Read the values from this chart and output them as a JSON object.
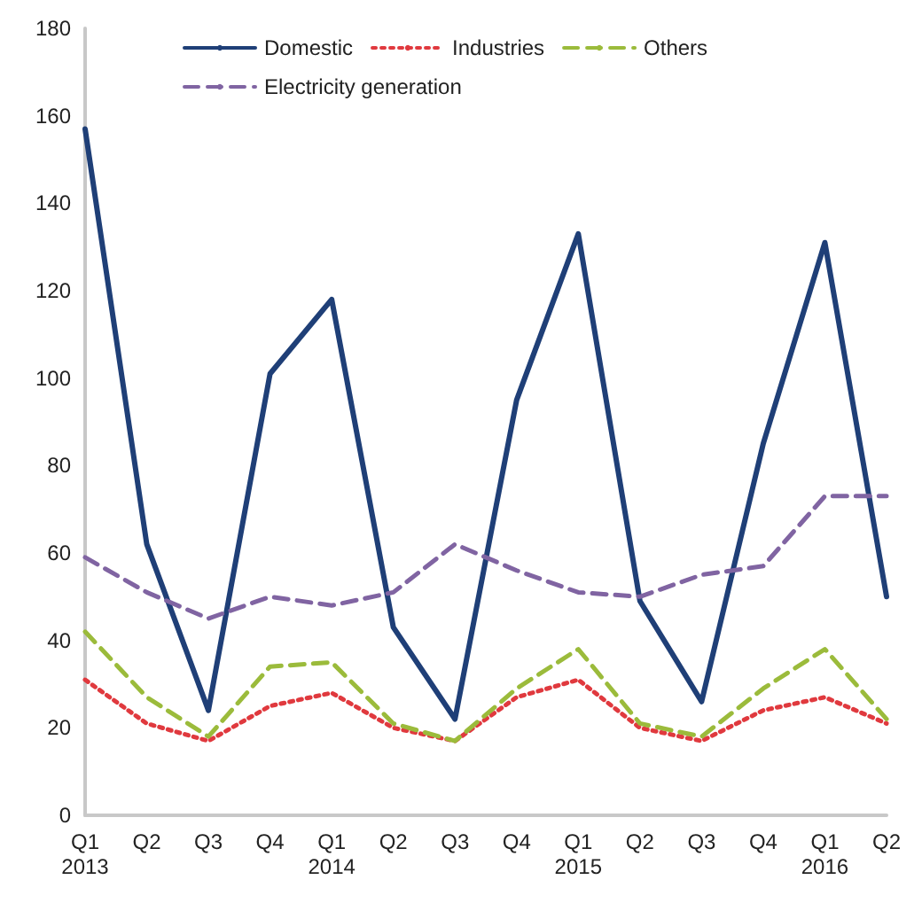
{
  "chart_data": {
    "type": "line",
    "categories": [
      "Q1\n2013",
      "Q2",
      "Q3",
      "Q4",
      "Q1\n2014",
      "Q2",
      "Q3",
      "Q4",
      "Q1\n2015",
      "Q2",
      "Q3",
      "Q4",
      "Q1\n2016",
      "Q2"
    ],
    "series": [
      {
        "name": "Domestic",
        "color": "#1f3f77",
        "line_style": "solid",
        "values": [
          157,
          62,
          24,
          101,
          118,
          43,
          22,
          95,
          133,
          49,
          26,
          85,
          131,
          50
        ]
      },
      {
        "name": "Industries",
        "color": "#e0393e",
        "line_style": "dotted",
        "values": [
          31,
          21,
          17,
          25,
          28,
          20,
          17,
          27,
          31,
          20,
          17,
          24,
          27,
          21
        ]
      },
      {
        "name": "Others",
        "color": "#9bbb3b",
        "line_style": "dashed",
        "values": [
          42,
          27,
          18,
          34,
          35,
          21,
          17,
          29,
          38,
          21,
          18,
          29,
          38,
          22
        ]
      },
      {
        "name": "Electricity generation",
        "color": "#8064a2",
        "line_style": "dashed",
        "values": [
          59,
          51,
          45,
          50,
          48,
          51,
          62,
          56,
          51,
          50,
          55,
          57,
          73,
          73
        ]
      }
    ],
    "ylim": [
      0,
      180
    ],
    "yticks": [
      0,
      20,
      40,
      60,
      80,
      100,
      120,
      140,
      160,
      180
    ],
    "grid": false,
    "legend": "top",
    "marker": "none"
  }
}
